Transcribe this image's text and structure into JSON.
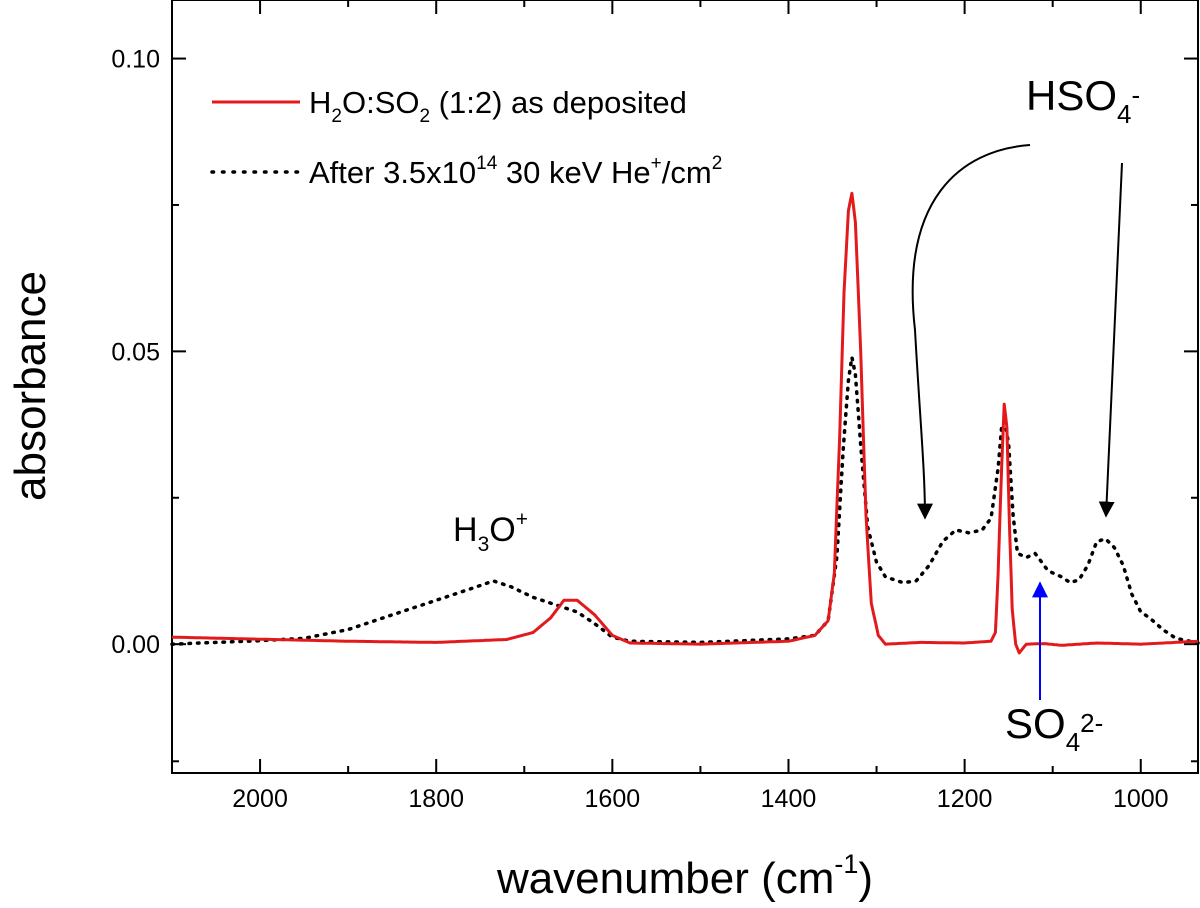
{
  "chart_data": {
    "type": "line",
    "xlabel": {
      "main": "wavenumber (cm",
      "sup": "-1",
      "close": ")"
    },
    "ylabel": "absorbance",
    "xlim": [
      2100,
      935
    ],
    "ylim": [
      -0.022,
      0.11
    ],
    "x_ticks": [
      2000,
      1800,
      1600,
      1400,
      1200,
      1000
    ],
    "x_tick_labels": [
      "2000",
      "1800",
      "1600",
      "1400",
      "1200",
      "1000"
    ],
    "y_ticks": [
      0.0,
      0.05,
      0.1
    ],
    "y_tick_labels": [
      "0.00",
      "0.05",
      "0.10"
    ],
    "legend": {
      "position": "top-left",
      "entries": [
        {
          "parts": [
            [
              "H",
              ""
            ],
            [
              "2",
              "sub"
            ],
            [
              "O:SO",
              ""
            ],
            [
              "2",
              "sub"
            ],
            [
              " (1:2) as deposited",
              ""
            ]
          ],
          "color": "#e31a1c",
          "style": "solid"
        },
        {
          "parts": [
            [
              "After 3.5x10",
              ""
            ],
            [
              "14",
              "sup"
            ],
            [
              " 30 keV He",
              ""
            ],
            [
              "+",
              "sup"
            ],
            [
              "/cm",
              ""
            ],
            [
              "2",
              "sup"
            ]
          ],
          "color": "#000000",
          "style": "dotted"
        }
      ]
    },
    "series": [
      {
        "name": "H2O:SO2 (1:2) as deposited",
        "color": "#e31a1c",
        "style": "solid",
        "points": [
          [
            2100,
            0.0012
          ],
          [
            1900,
            0.0005
          ],
          [
            1800,
            0.0003
          ],
          [
            1720,
            0.0008
          ],
          [
            1690,
            0.002
          ],
          [
            1670,
            0.0045
          ],
          [
            1655,
            0.0075
          ],
          [
            1640,
            0.0075
          ],
          [
            1620,
            0.005
          ],
          [
            1600,
            0.0015
          ],
          [
            1580,
            0.0002
          ],
          [
            1500,
            0.0
          ],
          [
            1400,
            0.0005
          ],
          [
            1370,
            0.0015
          ],
          [
            1355,
            0.004
          ],
          [
            1348,
            0.012
          ],
          [
            1342,
            0.035
          ],
          [
            1337,
            0.06
          ],
          [
            1332,
            0.074
          ],
          [
            1328,
            0.077
          ],
          [
            1324,
            0.072
          ],
          [
            1318,
            0.05
          ],
          [
            1312,
            0.022
          ],
          [
            1306,
            0.007
          ],
          [
            1298,
            0.0015
          ],
          [
            1290,
            0.0
          ],
          [
            1250,
            0.0003
          ],
          [
            1200,
            0.0002
          ],
          [
            1170,
            0.0005
          ],
          [
            1165,
            0.002
          ],
          [
            1162,
            0.012
          ],
          [
            1158,
            0.03
          ],
          [
            1155,
            0.041
          ],
          [
            1152,
            0.037
          ],
          [
            1149,
            0.02
          ],
          [
            1146,
            0.006
          ],
          [
            1142,
            0.0
          ],
          [
            1138,
            -0.0015
          ],
          [
            1130,
            0.0
          ],
          [
            1110,
            0.0001
          ],
          [
            1090,
            -0.0002
          ],
          [
            1050,
            0.0002
          ],
          [
            1000,
            0.0
          ],
          [
            935,
            0.0005
          ]
        ]
      },
      {
        "name": "After 3.5x10^14 30 keV He+/cm2",
        "color": "#000000",
        "style": "dotted",
        "points": [
          [
            2100,
            0.0
          ],
          [
            2000,
            0.0006
          ],
          [
            1950,
            0.001
          ],
          [
            1900,
            0.0025
          ],
          [
            1850,
            0.005
          ],
          [
            1800,
            0.0075
          ],
          [
            1760,
            0.0095
          ],
          [
            1735,
            0.0108
          ],
          [
            1715,
            0.0098
          ],
          [
            1690,
            0.008
          ],
          [
            1660,
            0.0065
          ],
          [
            1640,
            0.0055
          ],
          [
            1620,
            0.0035
          ],
          [
            1600,
            0.0012
          ],
          [
            1580,
            0.0005
          ],
          [
            1500,
            0.0003
          ],
          [
            1400,
            0.0009
          ],
          [
            1370,
            0.0015
          ],
          [
            1355,
            0.004
          ],
          [
            1345,
            0.015
          ],
          [
            1338,
            0.033
          ],
          [
            1332,
            0.045
          ],
          [
            1328,
            0.049
          ],
          [
            1324,
            0.046
          ],
          [
            1318,
            0.034
          ],
          [
            1310,
            0.02
          ],
          [
            1300,
            0.014
          ],
          [
            1290,
            0.0115
          ],
          [
            1270,
            0.0105
          ],
          [
            1255,
            0.0108
          ],
          [
            1240,
            0.0135
          ],
          [
            1225,
            0.0175
          ],
          [
            1210,
            0.0195
          ],
          [
            1195,
            0.019
          ],
          [
            1180,
            0.0195
          ],
          [
            1170,
            0.0215
          ],
          [
            1162,
            0.03
          ],
          [
            1158,
            0.037
          ],
          [
            1154,
            0.038
          ],
          [
            1150,
            0.034
          ],
          [
            1145,
            0.022
          ],
          [
            1140,
            0.0155
          ],
          [
            1130,
            0.0148
          ],
          [
            1120,
            0.0155
          ],
          [
            1105,
            0.0125
          ],
          [
            1090,
            0.0115
          ],
          [
            1080,
            0.0105
          ],
          [
            1070,
            0.011
          ],
          [
            1060,
            0.0135
          ],
          [
            1050,
            0.0175
          ],
          [
            1040,
            0.018
          ],
          [
            1030,
            0.0165
          ],
          [
            1020,
            0.0135
          ],
          [
            1010,
            0.0085
          ],
          [
            1000,
            0.0055
          ],
          [
            990,
            0.0045
          ],
          [
            975,
            0.0025
          ],
          [
            960,
            0.001
          ],
          [
            935,
            0.0002
          ]
        ]
      }
    ],
    "annotations": {
      "h3o": {
        "parts": [
          [
            "H",
            ""
          ],
          [
            "3",
            "sub"
          ],
          [
            "O",
            ""
          ],
          [
            "+",
            "sup"
          ]
        ]
      },
      "hso4": {
        "parts": [
          [
            "HSO",
            ""
          ],
          [
            "4",
            "sub"
          ],
          [
            "-",
            "sup"
          ]
        ]
      },
      "so4": {
        "parts": [
          [
            "SO",
            ""
          ],
          [
            "4",
            "sub"
          ],
          [
            "2-",
            "sup"
          ]
        ]
      }
    }
  }
}
